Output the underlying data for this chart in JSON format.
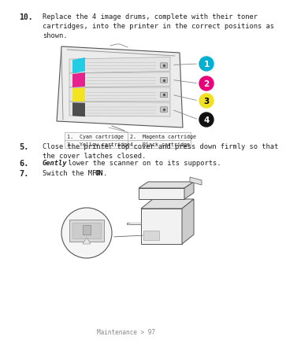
{
  "bg_color": "#ffffff",
  "title_num": "10.",
  "title_text": "Replace the 4 image drums, complete with their toner\ncartridges, into the printer in the correct positions as\nshown.",
  "step5_num": "5.",
  "step5_text": "Close the printer top cover and press down firmly so that\nthe cover latches closed.",
  "step6_num": "6.",
  "step6_bold": "Gently",
  "step6_rest": " lower the scanner on to its supports.",
  "step7_num": "7.",
  "step7_normal": "Switch the MFP ",
  "step7_bold": "ON",
  "step7_end": ".",
  "footer": "Maintenance > 97",
  "table": [
    [
      "1.  Cyan cartridge",
      "2.  Magenta cartridge"
    ],
    [
      "3.  Yellow cartridge",
      "4.  Black cartridge"
    ]
  ],
  "circles": [
    {
      "label": "1",
      "color": "#00b0d0"
    },
    {
      "label": "2",
      "color": "#e8007a"
    },
    {
      "label": "3",
      "color": "#f0e020"
    },
    {
      "label": "4",
      "color": "#111111"
    }
  ],
  "tray_colors": [
    "#00c8e6",
    "#e6007e",
    "#f5e400",
    "#333333"
  ],
  "text_color": "#222222",
  "line_color": "#777777"
}
